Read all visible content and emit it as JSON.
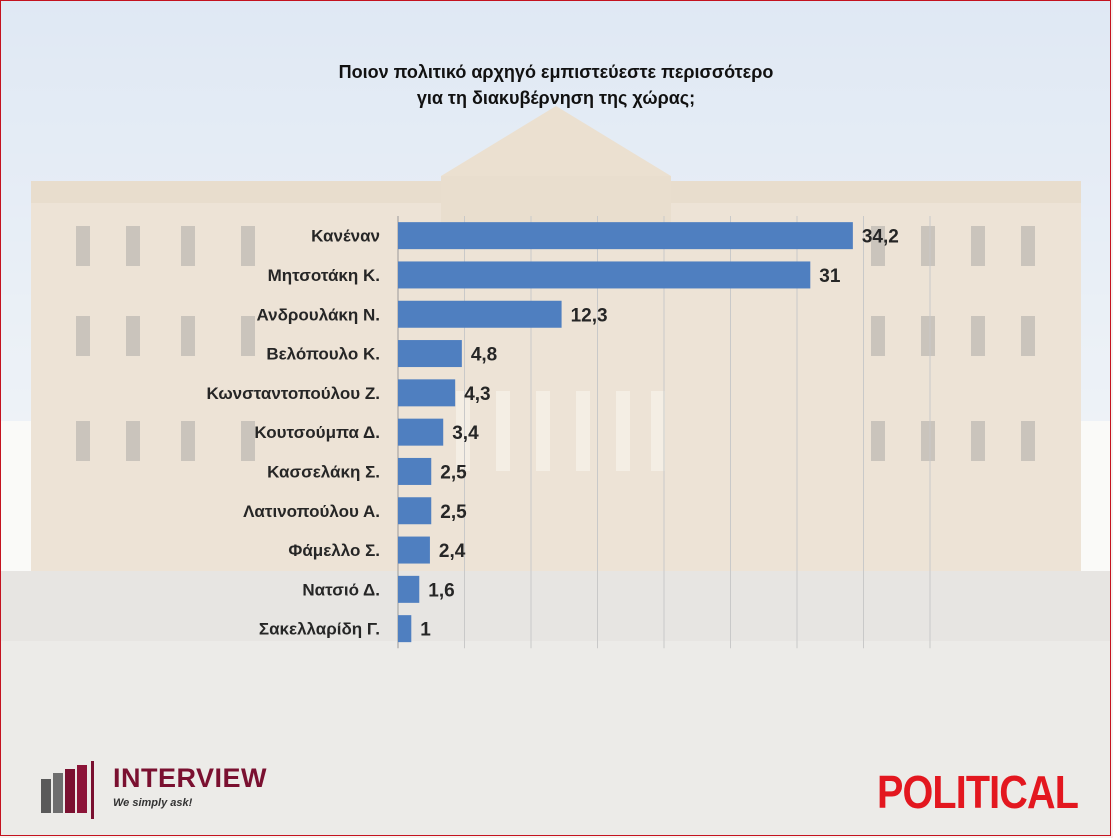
{
  "title": {
    "line1": "Ποιον πολιτικό αρχηγό εμπιστεύεστε περισσότερο",
    "line2": "για τη διακυβέρνηση της χώρας;"
  },
  "colors": {
    "bar": "#4f7fc0",
    "frame": "#c4121f",
    "interview_brand": "#7a1030",
    "political_brand": "#e3171f"
  },
  "chart_data": {
    "type": "bar",
    "orientation": "horizontal",
    "categories": [
      "Κανέναν",
      "Μητσοτάκη Κ.",
      "Ανδρουλάκη Ν.",
      "Βελόπουλο Κ.",
      "Κωνσταντοπούλου Ζ.",
      "Κουτσούμπα Δ.",
      "Κασσελάκη Σ.",
      "Λατινοπούλου Α.",
      "Φάμελλο Σ.",
      "Νατσιό Δ.",
      "Σακελλαρίδη Γ."
    ],
    "values": [
      34.2,
      31,
      12.3,
      4.8,
      4.3,
      3.4,
      2.5,
      2.5,
      2.4,
      1.6,
      1
    ],
    "value_labels": [
      "34,2",
      "31",
      "12,3",
      "4,8",
      "4,3",
      "3,4",
      "2,5",
      "2,5",
      "2,4",
      "1,6",
      "1"
    ],
    "xlim": [
      0,
      40
    ],
    "grid": true
  },
  "logos": {
    "interview_name": "INTERVIEW",
    "interview_tagline": "We simply ask!",
    "political_name": "POLITICAL"
  }
}
